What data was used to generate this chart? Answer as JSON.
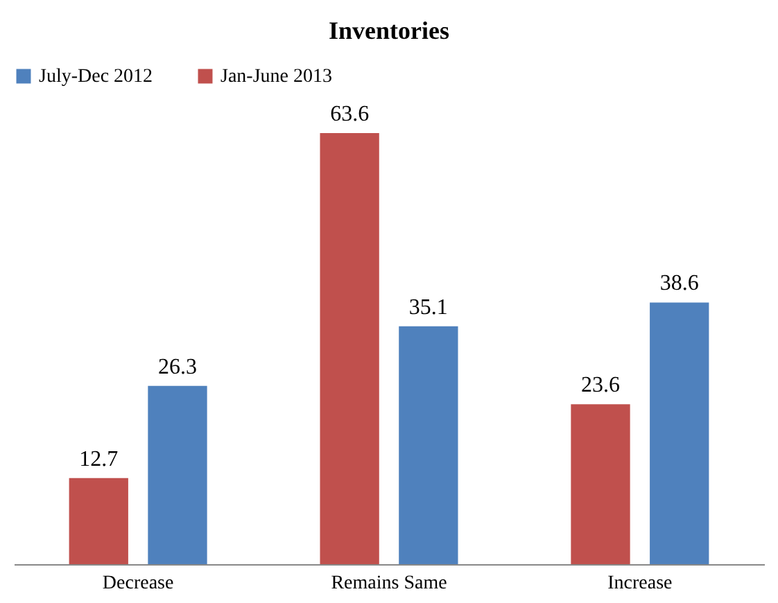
{
  "chart_data": {
    "type": "bar",
    "title": "Inventories",
    "categories": [
      "Decrease",
      "Remains Same",
      "Increase"
    ],
    "series": [
      {
        "name": "July-Dec 2012",
        "color": "#4f81bd",
        "values": [
          26.3,
          35.1,
          38.6
        ]
      },
      {
        "name": "Jan-June 2013",
        "color": "#c0504d",
        "values": [
          12.7,
          63.6,
          23.6
        ]
      }
    ],
    "data_labels": true,
    "legend": "top"
  }
}
